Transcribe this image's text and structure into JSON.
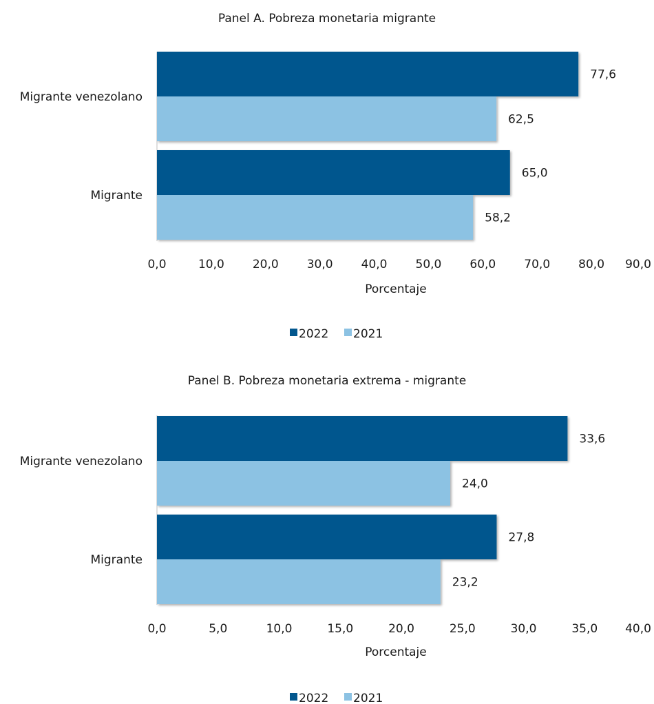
{
  "colors": {
    "y2022": "#02578E",
    "y2021": "#8CC2E3",
    "axis": "#bfbfbf"
  },
  "chart_data": [
    {
      "type": "bar",
      "orientation": "horizontal",
      "title": "Panel A. Pobreza monetaria migrante",
      "xlabel": "Porcentaje",
      "categories": [
        "Migrante venezolano",
        "Migrante"
      ],
      "series": [
        {
          "name": "2022",
          "values": [
            77.6,
            65.0
          ],
          "labels": [
            "77,6",
            "65,0"
          ]
        },
        {
          "name": "2021",
          "values": [
            62.5,
            58.2
          ],
          "labels": [
            "62,5",
            "58,2"
          ]
        }
      ],
      "xlim": [
        0,
        90
      ],
      "ticks": [
        0,
        10,
        20,
        30,
        40,
        50,
        60,
        70,
        80,
        90
      ],
      "tick_labels": [
        "0,0",
        "10,0",
        "20,0",
        "30,0",
        "40,0",
        "50,0",
        "60,0",
        "70,0",
        "80,0",
        "90,0"
      ],
      "legend": [
        "2022",
        "2021"
      ],
      "legend_position": "bottom",
      "grid": false
    },
    {
      "type": "bar",
      "orientation": "horizontal",
      "title": "Panel B. Pobreza monetaria extrema - migrante",
      "xlabel": "Porcentaje",
      "categories": [
        "Migrante venezolano",
        "Migrante"
      ],
      "series": [
        {
          "name": "2022",
          "values": [
            33.6,
            27.8
          ],
          "labels": [
            "33,6",
            "27,8"
          ]
        },
        {
          "name": "2021",
          "values": [
            24.0,
            23.2
          ],
          "labels": [
            "24,0",
            "23,2"
          ]
        }
      ],
      "xlim": [
        0,
        40
      ],
      "ticks": [
        0,
        5,
        10,
        15,
        20,
        25,
        30,
        35,
        40
      ],
      "tick_labels": [
        "0,0",
        "5,0",
        "10,0",
        "15,0",
        "20,0",
        "25,0",
        "30,0",
        "35,0",
        "40,0"
      ],
      "legend": [
        "2022",
        "2021"
      ],
      "legend_position": "bottom",
      "grid": false
    }
  ]
}
